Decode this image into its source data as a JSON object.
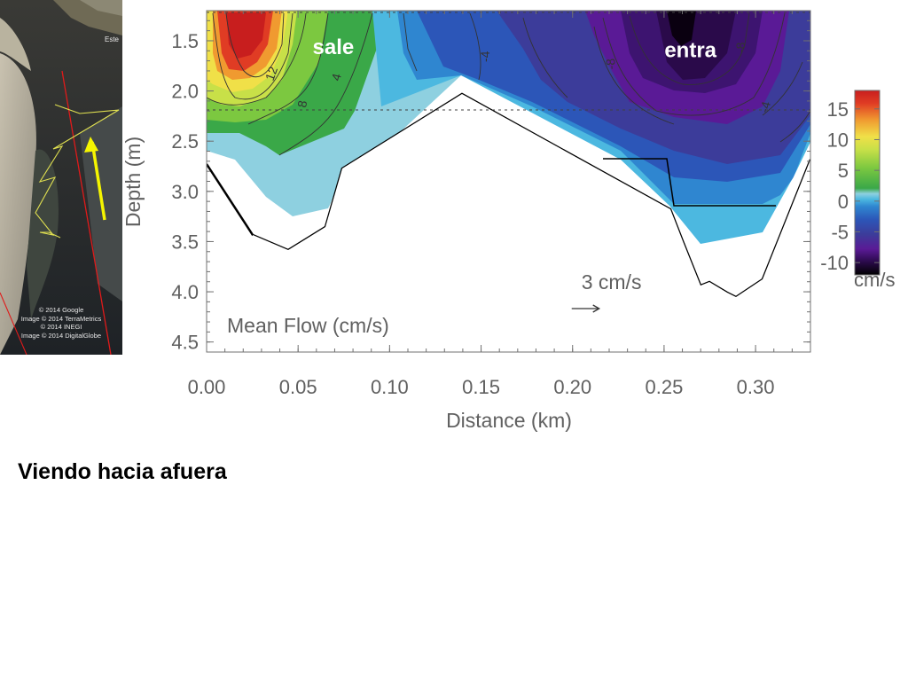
{
  "caption": "Viendo hacia afuera",
  "map": {
    "place_label": "Este",
    "credits": [
      "© 2014 Google",
      "Image © 2014 TerraMetrics",
      "© 2014 INEGI",
      "Image © 2014 DigitalGlobe"
    ],
    "colors": {
      "transect": "#e01a1a",
      "track": "#e0e050",
      "arrow": "#f5f500"
    }
  },
  "chart_data": {
    "type": "heatmap",
    "title": "",
    "panel_label": "Mean Flow (cm/s)",
    "xlabel": "Distance (km)",
    "ylabel": "Depth (m)",
    "xlim": [
      0.0,
      0.33
    ],
    "ylim": [
      4.6,
      1.2
    ],
    "xticks": [
      "0.00",
      "0.05",
      "0.10",
      "0.15",
      "0.20",
      "0.25",
      "0.30"
    ],
    "yticks": [
      "1.5",
      "2.0",
      "2.5",
      "3.0",
      "3.5",
      "4.0",
      "4.5"
    ],
    "colorbar": {
      "label": "cm/s",
      "ticks": [
        "15",
        "10",
        "5",
        "0",
        "-5",
        "-10"
      ],
      "range": [
        -12,
        18
      ],
      "colors": [
        "#000000",
        "#2a0a4a",
        "#5a1a96",
        "#3c3c9a",
        "#2c56b8",
        "#2f86d0",
        "#4cb8e0",
        "#8ed0e0",
        "#3aa848",
        "#7cc840",
        "#c8e048",
        "#f0e048",
        "#f09a30",
        "#e03c24",
        "#c81e1e"
      ]
    },
    "annotations": [
      {
        "text": "sale",
        "x": 0.045,
        "y": 1.5
      },
      {
        "text": "entra",
        "x": 0.262,
        "y": 1.55
      }
    ],
    "reference_arrow": {
      "label": "3 cm/s",
      "x": 0.2,
      "y": 4.25
    },
    "contour_labels": [
      "12",
      "8",
      "4",
      "-4",
      "-8",
      "-8",
      "-4"
    ],
    "bathymetry": {
      "x": [
        0.0,
        0.025,
        0.045,
        0.066,
        0.077,
        0.141,
        0.248,
        0.262,
        0.27,
        0.275,
        0.28,
        0.29,
        0.31,
        0.33
      ],
      "depth": [
        2.75,
        3.48,
        3.63,
        3.4,
        2.8,
        2.05,
        3.2,
        3.8,
        4.02,
        3.98,
        4.05,
        4.13,
        3.8,
        2.8
      ]
    }
  }
}
